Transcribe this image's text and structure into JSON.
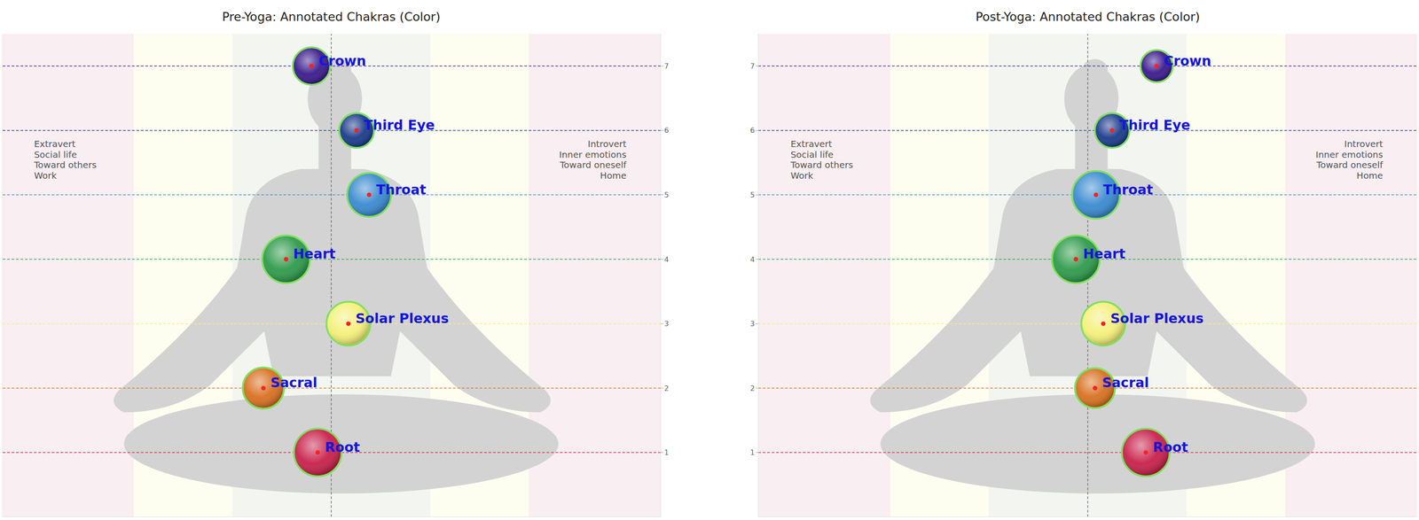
{
  "chart_data": [
    {
      "type": "scatter",
      "title": "Pre-Yoga: Annotated Chakras (Color)",
      "categories": [
        "Crown",
        "Third Eye",
        "Throat",
        "Heart",
        "Solar Plexus",
        "Sacral",
        "Root"
      ],
      "x": [
        -0.06,
        0.077,
        0.115,
        -0.137,
        0.052,
        -0.206,
        -0.041
      ],
      "values": [
        7,
        6,
        5,
        4,
        3,
        2,
        1
      ],
      "size": [
        0.29,
        0.27,
        0.34,
        0.37,
        0.34,
        0.32,
        0.37
      ],
      "colors": [
        "#3a1a8c",
        "#1a3a8a",
        "#3a8ad0",
        "#2e9a4a",
        "#f5f07a",
        "#d87020",
        "#c8204a"
      ],
      "xlim": [
        -1,
        1
      ],
      "ylim": [
        0,
        7.5
      ],
      "yticks": [
        1,
        2,
        3,
        4,
        5,
        6,
        7
      ],
      "tick_labels": "y",
      "annotations": [
        [
          "Extravert",
          "Social life",
          "Toward others",
          "Work"
        ],
        [
          "Introvert",
          "Inner emotions",
          "Toward oneself",
          "Home"
        ]
      ]
    },
    {
      "type": "scatter",
      "title": "Post-Yoga: Annotated Chakras (Color)",
      "categories": [
        "Crown",
        "Third Eye",
        "Throat",
        "Heart",
        "Solar Plexus",
        "Sacral",
        "Root"
      ],
      "x": [
        0.209,
        0.074,
        0.025,
        -0.036,
        0.047,
        0.022,
        0.176
      ],
      "values": [
        7,
        6,
        5,
        4,
        3,
        2,
        1
      ],
      "size": [
        0.25,
        0.27,
        0.37,
        0.37,
        0.34,
        0.31,
        0.37
      ],
      "colors": [
        "#3a1a8c",
        "#1a3a8a",
        "#3a8ad0",
        "#2e9a4a",
        "#f5f07a",
        "#d87020",
        "#c8204a"
      ],
      "xlim": [
        -1,
        1
      ],
      "ylim": [
        0,
        7.5
      ],
      "yticks": [
        1,
        2,
        3,
        4,
        5,
        6,
        7
      ],
      "tick_labels": "y",
      "annotations": [
        [
          "Extravert",
          "Social life",
          "Toward others",
          "Work"
        ],
        [
          "Introvert",
          "Inner emotions",
          "Toward oneself",
          "Home"
        ]
      ]
    }
  ]
}
